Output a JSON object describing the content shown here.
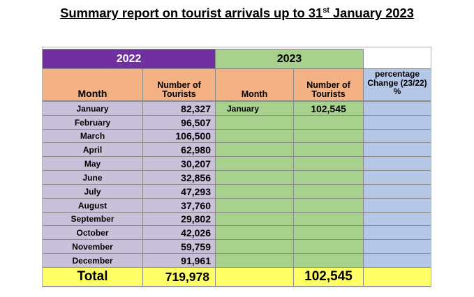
{
  "title": {
    "main": "Summary report on tourist arrivals up to 31",
    "sup": "st",
    "tail": " January 2023"
  },
  "headers": {
    "year_2022": "2022",
    "year_2023": "2023",
    "month_2022": "Month",
    "tourists_2022": "Number of Tourists",
    "month_2023": "Month",
    "tourists_2023": "Number of Tourists",
    "pct_change": "percentage Change (23/22) %"
  },
  "rows": [
    {
      "month": "January",
      "tourists_2022": "82,327",
      "month_2023": "January",
      "tourists_2023": "102,545"
    },
    {
      "month": "February",
      "tourists_2022": "96,507",
      "month_2023": "",
      "tourists_2023": ""
    },
    {
      "month": "March",
      "tourists_2022": "106,500",
      "month_2023": "",
      "tourists_2023": ""
    },
    {
      "month": "April",
      "tourists_2022": "62,980",
      "month_2023": "",
      "tourists_2023": ""
    },
    {
      "month": "May",
      "tourists_2022": "30,207",
      "month_2023": "",
      "tourists_2023": ""
    },
    {
      "month": "June",
      "tourists_2022": "32,856",
      "month_2023": "",
      "tourists_2023": ""
    },
    {
      "month": "July",
      "tourists_2022": "47,293",
      "month_2023": "",
      "tourists_2023": ""
    },
    {
      "month": "August",
      "tourists_2022": "37,760",
      "month_2023": "",
      "tourists_2023": ""
    },
    {
      "month": "September",
      "tourists_2022": "29,802",
      "month_2023": "",
      "tourists_2023": ""
    },
    {
      "month": "October",
      "tourists_2022": "42,026",
      "month_2023": "",
      "tourists_2023": ""
    },
    {
      "month": "November",
      "tourists_2022": "59,759",
      "month_2023": "",
      "tourists_2023": ""
    },
    {
      "month": "December",
      "tourists_2022": "91,961",
      "month_2023": "",
      "tourists_2023": ""
    }
  ],
  "total": {
    "label": "Total",
    "tourists_2022": "719,978",
    "tourists_2023": "102,545"
  },
  "colors": {
    "year_2022_band": "#7030a0",
    "year_2023_band": "#a9d18e",
    "header": "#f4b183",
    "pct_header": "#b4c7e7",
    "rows_2022": "#c9c0da",
    "rows_2023": "#a9d18e",
    "pct_rows": "#b4c7e7",
    "total_row": "#ffff66"
  }
}
